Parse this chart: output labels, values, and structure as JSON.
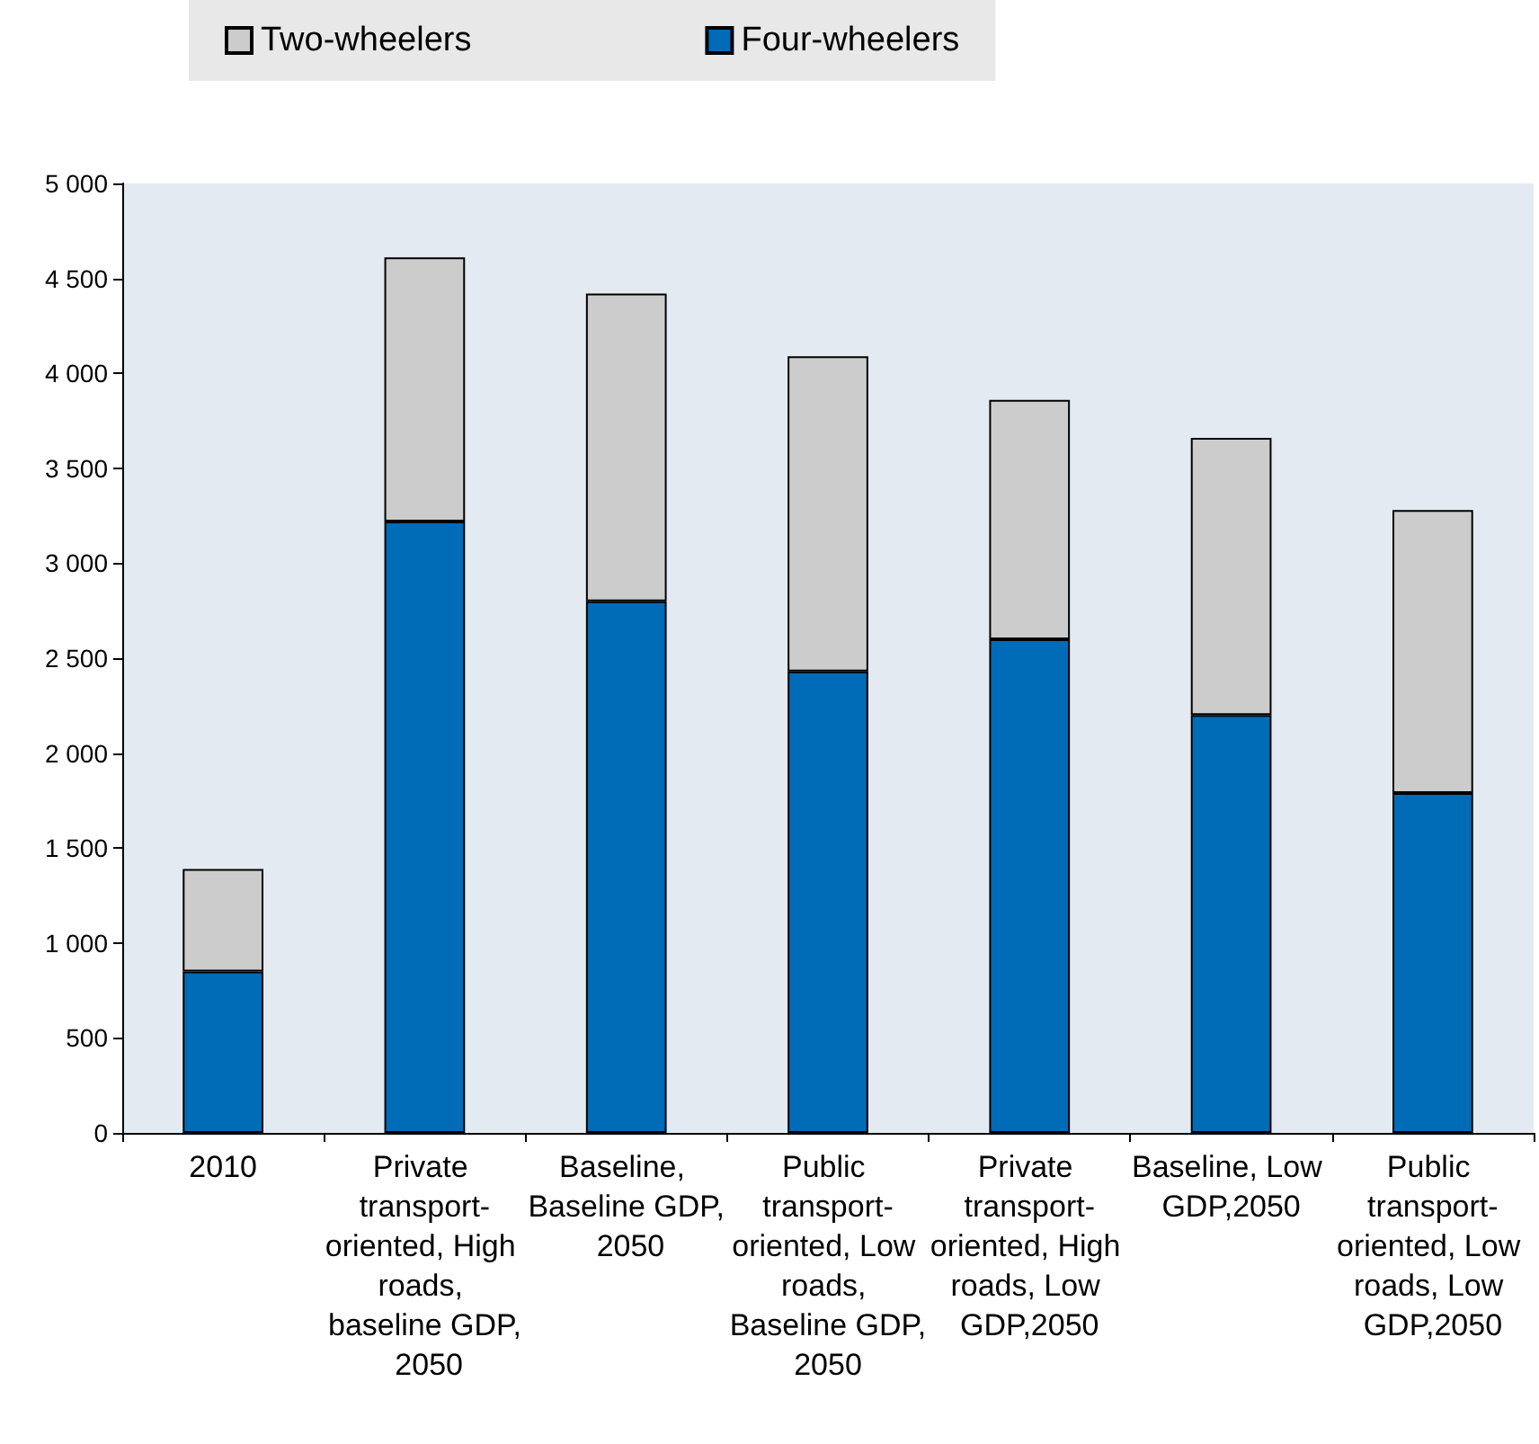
{
  "chart_data": {
    "type": "bar",
    "stacked": true,
    "legend": "top",
    "grid": false,
    "categories": [
      "2010",
      "Private transport-oriented, High roads, baseline GDP, 2050",
      "Baseline, Baseline GDP, 2050",
      "Public transport-oriented, Low roads, Baseline GDP,2050",
      "Private transport-oriented, High roads, Low GDP,2050",
      "Baseline, Low GDP,2050",
      "Public transport-oriented, Low roads, Low GDP,2050"
    ],
    "series": [
      {
        "name": "Four-wheelers",
        "color": "#006bb6",
        "values": [
          850,
          3220,
          2800,
          2430,
          2600,
          2200,
          1790
        ]
      },
      {
        "name": "Two-wheelers",
        "color": "#cccccc",
        "values": [
          540,
          1390,
          1620,
          1660,
          1260,
          1460,
          1490
        ]
      }
    ],
    "ylim": [
      0,
      5000
    ],
    "yticks": [
      0,
      500,
      {
        "value": 1000,
        "label": "1 000"
      },
      {
        "value": 1500,
        "label": "1 500"
      },
      {
        "value": 2000,
        "label": "2 000"
      },
      {
        "value": 2500,
        "label": "2 500"
      },
      {
        "value": 3000,
        "label": "3 000"
      },
      {
        "value": 3500,
        "label": "3 500"
      },
      {
        "value": 4000,
        "label": "4 000"
      },
      {
        "value": 4500,
        "label": "4 500"
      },
      {
        "value": 5000,
        "label": "5 000"
      }
    ]
  }
}
